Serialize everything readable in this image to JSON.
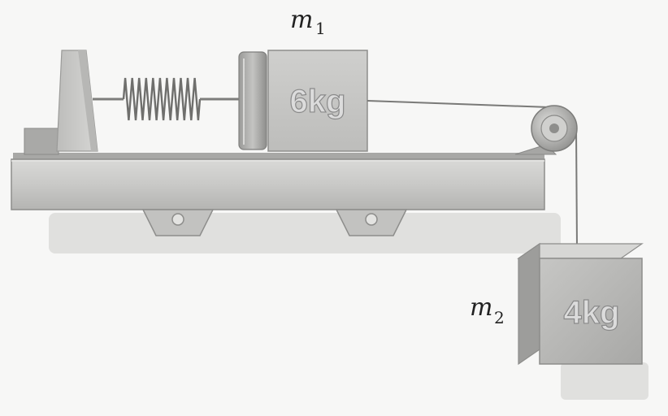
{
  "labels": {
    "m1_symbol": "m",
    "m1_subscript": "1",
    "m2_symbol": "m",
    "m2_subscript": "2"
  },
  "masses": {
    "m1_text": "6kg",
    "m2_text": "4kg"
  }
}
